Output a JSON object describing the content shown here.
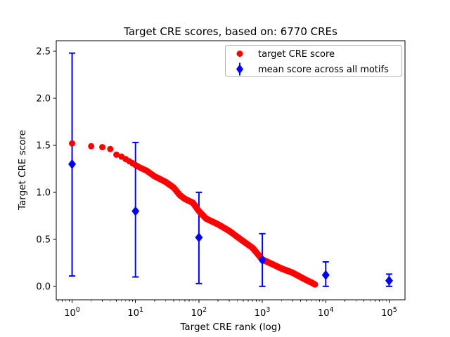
{
  "figure": {
    "background_color": "#ffffff"
  },
  "chart_data": {
    "type": "scatter",
    "title": "Target CRE scores, based on: 6770 CREs",
    "xlabel": "Target CRE rank (log)",
    "ylabel": "Target CRE score",
    "x_scale": "log",
    "grid": false,
    "legend_position": "upper right",
    "xlim_exp": [
      -0.25,
      5.25
    ],
    "ylim": [
      -0.143,
      2.612
    ],
    "x_ticks": [
      1,
      10,
      100,
      1000,
      10000,
      100000
    ],
    "x_tick_labels": [
      "10^0",
      "10^1",
      "10^2",
      "10^3",
      "10^4",
      "10^5"
    ],
    "y_ticks": [
      0.0,
      0.5,
      1.0,
      1.5,
      2.0,
      2.5
    ],
    "y_tick_labels": [
      "0.0",
      "0.5",
      "1.0",
      "1.5",
      "2.0",
      "2.5"
    ],
    "series": [
      {
        "name": "target CRE score",
        "type": "scatter",
        "marker": "circle",
        "color": "#ff0000",
        "n_points": 6770,
        "x_range": [
          1,
          6770
        ],
        "sampled_points": [
          [
            1,
            1.52
          ],
          [
            2,
            1.49
          ],
          [
            3,
            1.48
          ],
          [
            4,
            1.46
          ],
          [
            5,
            1.4
          ],
          [
            6,
            1.38
          ],
          [
            8,
            1.33
          ],
          [
            10,
            1.29
          ],
          [
            12,
            1.26
          ],
          [
            15,
            1.23
          ],
          [
            20,
            1.17
          ],
          [
            30,
            1.11
          ],
          [
            40,
            1.05
          ],
          [
            50,
            0.97
          ],
          [
            60,
            0.93
          ],
          [
            80,
            0.89
          ],
          [
            100,
            0.8
          ],
          [
            130,
            0.72
          ],
          [
            200,
            0.66
          ],
          [
            300,
            0.59
          ],
          [
            500,
            0.48
          ],
          [
            700,
            0.41
          ],
          [
            1000,
            0.285
          ],
          [
            1400,
            0.24
          ],
          [
            2000,
            0.19
          ],
          [
            3000,
            0.145
          ],
          [
            4000,
            0.1
          ],
          [
            5000,
            0.065
          ],
          [
            6000,
            0.04
          ],
          [
            6770,
            0.02
          ]
        ]
      },
      {
        "name": "mean score across all motifs",
        "type": "errorbar",
        "marker": "diamond",
        "color": "#0000ff",
        "x": [
          1,
          10,
          100,
          1000,
          10000,
          100000
        ],
        "y": [
          1.3,
          0.8,
          0.52,
          0.28,
          0.12,
          0.06
        ],
        "err_low": [
          0.11,
          0.1,
          0.03,
          0.0,
          0.0,
          0.0
        ],
        "err_high": [
          2.48,
          1.53,
          1.0,
          0.56,
          0.26,
          0.13
        ]
      }
    ]
  }
}
